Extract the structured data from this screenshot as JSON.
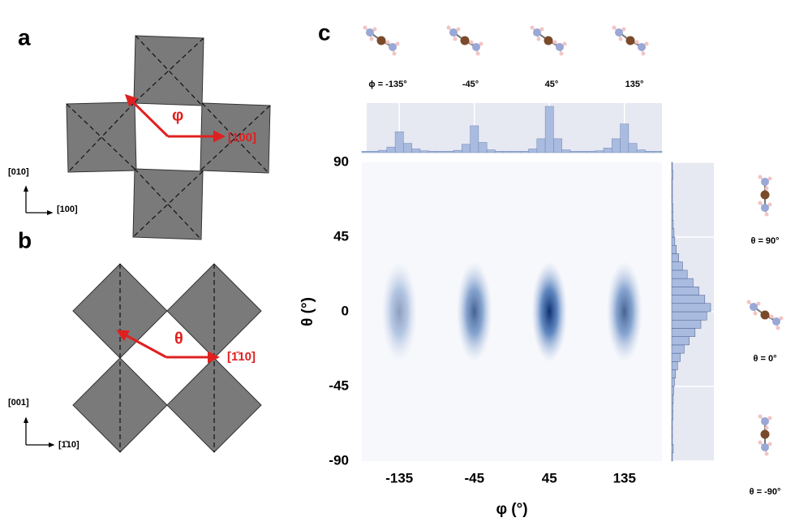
{
  "panels": {
    "a": {
      "label": "a",
      "arrow_label": "φ",
      "direction_label": "[100]",
      "axis_y_label": "[010]",
      "axis_x_label": "[100]"
    },
    "b": {
      "label": "b",
      "arrow_label": "θ",
      "direction_label": "[1̄10]",
      "axis_y_label": "[001]",
      "axis_x_label": "[1̄10]"
    }
  },
  "chart_data": {
    "type": "jointplot",
    "label": "c",
    "xlabel": "φ (°)",
    "ylabel": "θ (°)",
    "xlim": [
      -180,
      180
    ],
    "ylim": [
      -90,
      90
    ],
    "xticks": [
      -135,
      -45,
      45,
      135
    ],
    "yticks": [
      90,
      45,
      0,
      -45,
      -90
    ],
    "color": "#1f4f96",
    "hist_color": "#a9bbdf",
    "peaks": {
      "x": [
        -135,
        -45,
        45,
        135
      ],
      "y": [
        0,
        0,
        0,
        0
      ],
      "density": [
        0.45,
        0.75,
        1,
        0.75
      ]
    },
    "x_histogram": {
      "bins": [
        -180,
        -170,
        -160,
        -150,
        -140,
        -130,
        -120,
        -110,
        -100,
        -90,
        -80,
        -70,
        -60,
        -50,
        -40,
        -30,
        -20,
        -10,
        0,
        10,
        20,
        30,
        40,
        50,
        60,
        70,
        80,
        90,
        100,
        110,
        120,
        130,
        140,
        150,
        160,
        170,
        180
      ],
      "counts": [
        3,
        3,
        5,
        12,
        45,
        20,
        8,
        4,
        3,
        3,
        3,
        5,
        18,
        58,
        22,
        6,
        3,
        3,
        3,
        3,
        8,
        30,
        100,
        30,
        6,
        3,
        3,
        3,
        4,
        10,
        30,
        62,
        20,
        6,
        3,
        3
      ]
    },
    "y_histogram": {
      "bins": [
        -90,
        -85,
        -80,
        -75,
        -70,
        -65,
        -60,
        -55,
        -50,
        -45,
        -40,
        -35,
        -30,
        -25,
        -20,
        -15,
        -10,
        -5,
        0,
        5,
        10,
        15,
        20,
        25,
        30,
        35,
        40,
        45,
        50,
        55,
        60,
        65,
        70,
        75,
        80,
        85,
        90
      ],
      "counts": [
        2,
        4,
        2,
        2,
        2,
        3,
        3,
        4,
        5,
        7,
        10,
        15,
        22,
        32,
        45,
        60,
        75,
        90,
        100,
        85,
        70,
        55,
        40,
        28,
        18,
        12,
        8,
        6,
        4,
        3,
        3,
        2,
        2,
        2,
        3,
        2
      ]
    },
    "phi_conformers": [
      "ϕ = -135°",
      "-45°",
      "45°",
      "135°"
    ],
    "theta_conformers": [
      "θ = 90°",
      "θ = 0°",
      "θ = -90°"
    ]
  }
}
